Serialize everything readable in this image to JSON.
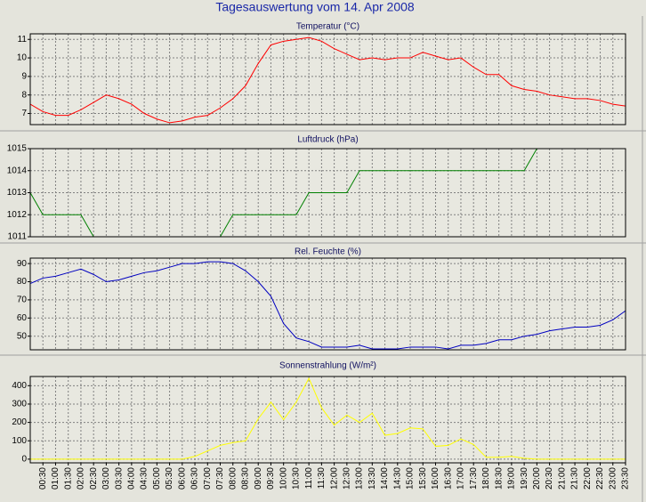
{
  "title": "Tagesauswertung vom 14. Apr 2008",
  "chart_data": [
    {
      "type": "line",
      "title": "Temperatur (°C)",
      "grid": true,
      "ylim": [
        6.4,
        11.3
      ],
      "yticks": [
        7,
        8,
        9,
        10,
        11
      ],
      "series": [
        {
          "name": "Temperatur",
          "color": "#ff0000",
          "values": [
            7.5,
            7.1,
            6.9,
            6.9,
            7.2,
            7.6,
            8.0,
            7.8,
            7.5,
            7.0,
            6.7,
            6.5,
            6.6,
            6.8,
            6.9,
            7.3,
            7.8,
            8.5,
            9.7,
            10.7,
            10.9,
            11.0,
            11.1,
            10.9,
            10.5,
            10.2,
            9.9,
            10.0,
            9.9,
            10.0,
            10.0,
            10.3,
            10.1,
            9.9,
            10.0,
            9.5,
            9.1,
            9.1,
            8.5,
            8.3,
            8.2,
            8.0,
            7.9,
            7.8,
            7.8,
            7.7,
            7.5,
            7.4
          ]
        }
      ]
    },
    {
      "type": "line",
      "title": "Luftdruck (hPa)",
      "grid": true,
      "ylim": [
        1011,
        1015
      ],
      "yticks": [
        1011,
        1012,
        1013,
        1014,
        1015
      ],
      "series": [
        {
          "name": "Luftdruck",
          "color": "#008000",
          "values": [
            1013,
            1012,
            1012,
            1012,
            1012,
            1011,
            1011,
            1011,
            1011,
            1011,
            1011,
            1011,
            1011,
            1011,
            1011,
            1011,
            1012,
            1012,
            1012,
            1012,
            1012,
            1012,
            1013,
            1013,
            1013,
            1013,
            1014,
            1014,
            1014,
            1014,
            1014,
            1014,
            1014,
            1014,
            1014,
            1014,
            1014,
            1014,
            1014,
            1014,
            1015,
            1015,
            1015,
            1015,
            1015,
            1015,
            1015,
            1015
          ]
        }
      ]
    },
    {
      "type": "line",
      "title": "Rel. Feuchte (%)",
      "grid": true,
      "ylim": [
        42.5,
        93
      ],
      "yticks": [
        50,
        60,
        70,
        80,
        90
      ],
      "series": [
        {
          "name": "Rel. Feuchte",
          "color": "#0000c0",
          "values": [
            79,
            82,
            83,
            85,
            87,
            84,
            80,
            81,
            83,
            85,
            86,
            88,
            90,
            90,
            91,
            91,
            90,
            86,
            80,
            72,
            57,
            49,
            47,
            44,
            44,
            44,
            45,
            43,
            43,
            43,
            44,
            44,
            44,
            43,
            45,
            45,
            46,
            48,
            48,
            50,
            51,
            53,
            54,
            55,
            55,
            56,
            59,
            64
          ]
        }
      ]
    },
    {
      "type": "line",
      "title": "Sonnenstrahlung (W/m²)",
      "grid": true,
      "ylim": [
        -20,
        450
      ],
      "yticks": [
        0,
        100,
        200,
        300,
        400
      ],
      "categories": [
        null,
        "00:30",
        "01:00",
        "01:30",
        "02:00",
        "02:30",
        "03:00",
        "03:30",
        "04:00",
        "04:30",
        "05:00",
        "05:30",
        "06:00",
        "06:30",
        "07:00",
        "07:30",
        "08:00",
        "08:30",
        "09:00",
        "09:30",
        "10:00",
        "10:30",
        "11:00",
        "11:30",
        "12:00",
        "12:30",
        "13:00",
        "13:30",
        "14:00",
        "14:30",
        "15:00",
        "15:30",
        "16:00",
        "16:30",
        "17:00",
        "17:30",
        "18:00",
        "18:30",
        "19:00",
        "19:30",
        "20:00",
        "20:30",
        "21:00",
        "21:30",
        "22:00",
        "22:30",
        "23:00",
        "23:30"
      ],
      "series": [
        {
          "name": "Sonnenstrahlung",
          "color": "#ffff00",
          "values": [
            0,
            0,
            0,
            0,
            0,
            0,
            0,
            0,
            0,
            0,
            0,
            0,
            0,
            15,
            45,
            75,
            90,
            100,
            220,
            310,
            215,
            310,
            440,
            280,
            185,
            240,
            200,
            250,
            130,
            140,
            170,
            165,
            70,
            75,
            110,
            80,
            10,
            10,
            15,
            5,
            0,
            0,
            0,
            0,
            0,
            0,
            0,
            0
          ]
        }
      ]
    }
  ]
}
